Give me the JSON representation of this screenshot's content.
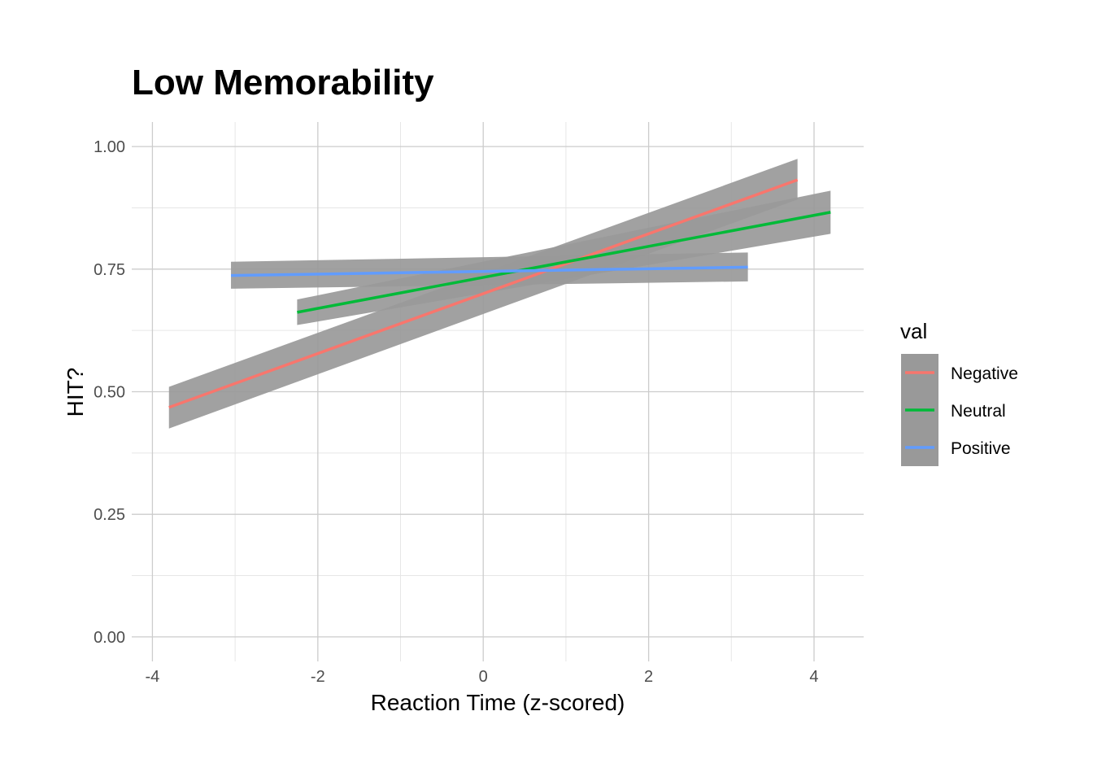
{
  "chart_data": {
    "type": "line",
    "title": "Low Memorability",
    "xlabel": "Reaction Time (z-scored)",
    "ylabel": "HIT?",
    "xlim": [
      -4.25,
      4.6
    ],
    "ylim": [
      -0.05,
      1.05
    ],
    "x_ticks": [
      -4,
      -2,
      0,
      2,
      4
    ],
    "x_tick_labels": [
      "-4",
      "-2",
      "0",
      "2",
      "4"
    ],
    "x_minor": [
      -3,
      -1,
      1,
      3
    ],
    "y_ticks": [
      0,
      0.25,
      0.5,
      0.75,
      1.0
    ],
    "y_tick_labels": [
      "0.00",
      "0.25",
      "0.50",
      "0.75",
      "1.00"
    ],
    "y_minor": [
      0.125,
      0.375,
      0.625,
      0.875
    ],
    "grid": true,
    "band_color": "#999999",
    "legend": {
      "title": "val",
      "placement": "right"
    },
    "series": [
      {
        "name": "Negative",
        "color": "#F8766D",
        "x": [
          -3.8,
          3.8
        ],
        "y": [
          0.468,
          0.932
        ],
        "lower": [
          0.425,
          0.892
        ],
        "upper": [
          0.51,
          0.975
        ]
      },
      {
        "name": "Neutral",
        "color": "#00BA38",
        "x": [
          -2.25,
          4.2
        ],
        "y": [
          0.662,
          0.866
        ],
        "lower": [
          0.636,
          0.822
        ],
        "upper": [
          0.688,
          0.91
        ]
      },
      {
        "name": "Positive",
        "color": "#619CFF",
        "x": [
          -3.05,
          3.2
        ],
        "y": [
          0.737,
          0.754
        ],
        "lower": [
          0.71,
          0.725
        ],
        "upper": [
          0.765,
          0.784
        ]
      }
    ]
  }
}
